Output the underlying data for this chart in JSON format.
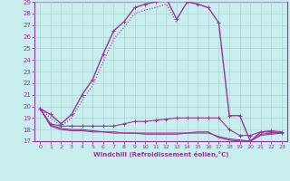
{
  "xlabel": "Windchill (Refroidissement éolien,°C)",
  "ylabel": "",
  "xlim": [
    -0.5,
    23.5
  ],
  "ylim": [
    17,
    29
  ],
  "xticks": [
    0,
    1,
    2,
    3,
    4,
    5,
    6,
    7,
    8,
    9,
    10,
    11,
    12,
    13,
    14,
    15,
    16,
    17,
    18,
    19,
    20,
    21,
    22,
    23
  ],
  "yticks": [
    17,
    18,
    19,
    20,
    21,
    22,
    23,
    24,
    25,
    26,
    27,
    28,
    29
  ],
  "background_color": "#c8eeee",
  "grid_color": "#aad4d4",
  "line_color": "#993399",
  "lines": [
    {
      "x": [
        0,
        1,
        2,
        3,
        4,
        5,
        6,
        7,
        8,
        9,
        10,
        11,
        12,
        13,
        14,
        15,
        16,
        17,
        18,
        19,
        20,
        21,
        22,
        23
      ],
      "y": [
        19.8,
        19.3,
        18.5,
        19.3,
        21.0,
        22.3,
        24.5,
        26.5,
        27.3,
        28.5,
        28.8,
        29.0,
        29.3,
        27.5,
        29.0,
        28.8,
        28.5,
        27.2,
        19.2,
        19.2,
        17.0,
        17.8,
        17.8,
        17.7
      ],
      "style": "-",
      "marker": "+",
      "markersize": 3,
      "linewidth": 1.0
    },
    {
      "x": [
        0,
        1,
        2,
        3,
        4,
        5,
        6,
        7,
        8,
        9,
        10,
        11,
        12,
        13
      ],
      "y": [
        19.8,
        19.0,
        18.3,
        19.0,
        20.5,
        21.8,
        23.8,
        25.8,
        26.8,
        28.0,
        28.3,
        28.5,
        28.8,
        27.2
      ],
      "style": ":",
      "marker": null,
      "markersize": 0,
      "linewidth": 0.8
    },
    {
      "x": [
        0,
        1,
        2,
        3,
        4,
        5,
        6,
        7,
        8,
        9,
        10,
        11,
        12,
        13,
        14,
        15,
        16,
        17,
        18,
        19,
        20,
        21,
        22,
        23
      ],
      "y": [
        19.8,
        18.5,
        18.3,
        18.3,
        18.3,
        18.3,
        18.3,
        18.3,
        18.5,
        18.7,
        18.7,
        18.8,
        18.9,
        19.0,
        19.0,
        19.0,
        19.0,
        19.0,
        18.0,
        17.5,
        17.5,
        17.8,
        17.9,
        17.8
      ],
      "style": "-",
      "marker": "+",
      "markersize": 2.5,
      "linewidth": 0.8
    },
    {
      "x": [
        0,
        1,
        2,
        3,
        4,
        5,
        6,
        7,
        8,
        9,
        10,
        11,
        12,
        13,
        14,
        15,
        16,
        17,
        18,
        19,
        20,
        21,
        22,
        23
      ],
      "y": [
        19.8,
        18.3,
        18.0,
        17.9,
        17.9,
        17.8,
        17.8,
        17.7,
        17.7,
        17.7,
        17.6,
        17.6,
        17.6,
        17.6,
        17.7,
        17.7,
        17.7,
        17.4,
        17.2,
        17.1,
        17.0,
        17.5,
        17.6,
        17.7
      ],
      "style": "-",
      "marker": null,
      "markersize": 0,
      "linewidth": 0.8
    },
    {
      "x": [
        0,
        1,
        2,
        3,
        4,
        5,
        6,
        7,
        8,
        9,
        10,
        11,
        12,
        13,
        14,
        15,
        16,
        17,
        18,
        19,
        20,
        21,
        22,
        23
      ],
      "y": [
        19.8,
        18.4,
        18.1,
        18.0,
        18.0,
        17.9,
        17.8,
        17.8,
        17.7,
        17.7,
        17.7,
        17.7,
        17.7,
        17.7,
        17.7,
        17.8,
        17.8,
        17.3,
        17.1,
        17.0,
        17.0,
        17.6,
        17.7,
        17.7
      ],
      "style": "-",
      "marker": null,
      "markersize": 0,
      "linewidth": 0.8
    }
  ]
}
